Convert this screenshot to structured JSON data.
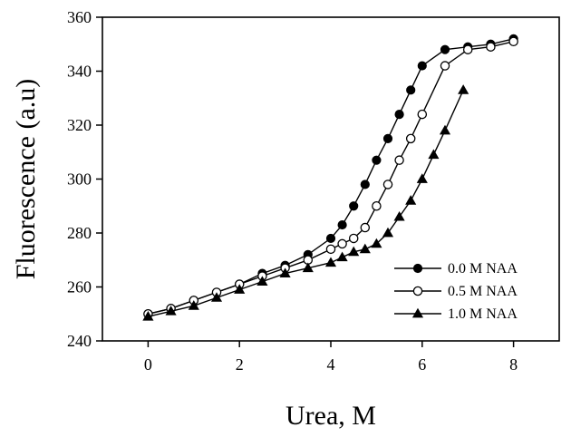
{
  "chart_data": {
    "type": "line",
    "title": "",
    "xlabel": "Urea, M",
    "ylabel": "Fluorescence (a.u)",
    "xlim": [
      -1,
      9
    ],
    "ylim": [
      240,
      360
    ],
    "xticks": [
      0,
      2,
      4,
      6,
      8
    ],
    "yticks": [
      240,
      260,
      280,
      300,
      320,
      340,
      360
    ],
    "grid": false,
    "legend_position": "lower-right",
    "series": [
      {
        "name": "0.0 M NAA",
        "marker": "filled-circle",
        "color": "#000000",
        "x": [
          0,
          0.5,
          1,
          1.5,
          2,
          2.5,
          3,
          3.5,
          4,
          4.25,
          4.5,
          4.75,
          5,
          5.25,
          5.5,
          5.75,
          6,
          6.5,
          7,
          7.5,
          8
        ],
        "y": [
          250,
          252,
          255,
          258,
          261,
          265,
          268,
          272,
          278,
          283,
          290,
          298,
          307,
          315,
          324,
          333,
          342,
          348,
          349,
          350,
          352
        ]
      },
      {
        "name": "0.5 M NAA",
        "marker": "open-circle",
        "color": "#000000",
        "x": [
          0,
          0.5,
          1,
          1.5,
          2,
          2.5,
          3,
          3.5,
          4,
          4.25,
          4.5,
          4.75,
          5,
          5.25,
          5.5,
          5.75,
          6,
          6.5,
          7,
          7.5,
          8
        ],
        "y": [
          250,
          252,
          255,
          258,
          261,
          264,
          267,
          270,
          274,
          276,
          278,
          282,
          290,
          298,
          307,
          315,
          324,
          342,
          348,
          349,
          351
        ]
      },
      {
        "name": "1.0 M NAA",
        "marker": "filled-triangle",
        "color": "#000000",
        "x": [
          0,
          0.5,
          1,
          1.5,
          2,
          2.5,
          3,
          3.5,
          4,
          4.25,
          4.5,
          4.75,
          5,
          5.25,
          5.5,
          5.75,
          6,
          6.25,
          6.5,
          6.9
        ],
        "y": [
          249,
          251,
          253,
          256,
          259,
          262,
          265,
          267,
          269,
          271,
          273,
          274,
          276,
          280,
          286,
          292,
          300,
          309,
          318,
          333
        ]
      }
    ]
  }
}
